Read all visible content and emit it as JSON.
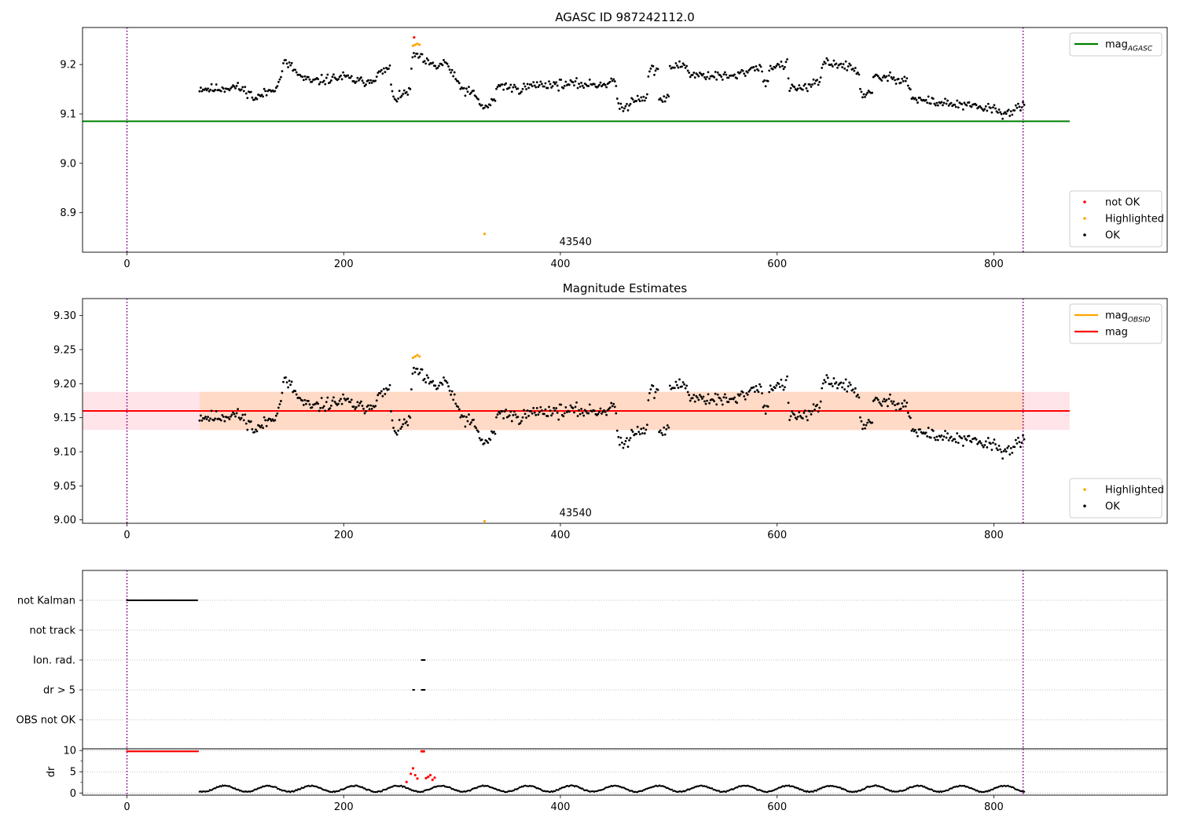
{
  "figure": {
    "title": "AGASC ID 987242112.0"
  },
  "chart_data": [
    {
      "type": "scatter",
      "title": "",
      "xlabel": "",
      "ylabel": "",
      "xlim": [
        -41,
        960
      ],
      "ylim": [
        8.82,
        9.275
      ],
      "x_ticks": [
        "0",
        "200",
        "400",
        "600",
        "800"
      ],
      "y_ticks": [
        "8.9",
        "9.0",
        "9.1",
        "9.2"
      ],
      "vlines": [
        0,
        827
      ],
      "hlines": [
        {
          "name": "mag_AGASC",
          "y": 9.085,
          "x_range": [
            -41,
            870
          ],
          "color": "#008000"
        }
      ],
      "obsid_label": {
        "text": "43540",
        "x": 414
      },
      "legend_lines": [
        {
          "name": "mag",
          "sub": "AGASC",
          "color": "#008000"
        }
      ],
      "legend_points": [
        {
          "name": "not OK",
          "color": "#ff0000"
        },
        {
          "name": "Highlighted",
          "color": "#ffa500"
        },
        {
          "name": "OK",
          "color": "#000000"
        }
      ],
      "series": [
        {
          "name": "OK",
          "color": "#000000",
          "seed": 11,
          "trend": [
            [
              67,
              9.152
            ],
            [
              80,
              9.15
            ],
            [
              100,
              9.155
            ],
            [
              112,
              9.145
            ],
            [
              118,
              9.13
            ],
            [
              130,
              9.145
            ],
            [
              140,
              9.16
            ],
            [
              145,
              9.205
            ],
            [
              152,
              9.195
            ],
            [
              160,
              9.175
            ],
            [
              170,
              9.165
            ],
            [
              200,
              9.175
            ],
            [
              215,
              9.165
            ],
            [
              225,
              9.168
            ],
            [
              232,
              9.18
            ],
            [
              240,
              9.19
            ],
            [
              243,
              9.195
            ],
            [
              244,
              9.14
            ],
            [
              250,
              9.13
            ],
            [
              258,
              9.145
            ],
            [
              262,
              9.15
            ],
            [
              263,
              9.215
            ],
            [
              268,
              9.22
            ],
            [
              275,
              9.205
            ],
            [
              285,
              9.195
            ],
            [
              295,
              9.205
            ],
            [
              300,
              9.18
            ],
            [
              310,
              9.15
            ],
            [
              320,
              9.14
            ],
            [
              330,
              9.11
            ],
            [
              340,
              9.13
            ],
            [
              342,
              9.16
            ],
            [
              360,
              9.15
            ],
            [
              380,
              9.16
            ],
            [
              440,
              9.16
            ],
            [
              451,
              9.17
            ],
            [
              452,
              9.12
            ],
            [
              460,
              9.11
            ],
            [
              466,
              9.13
            ],
            [
              480,
              9.135
            ],
            [
              482,
              9.19
            ],
            [
              490,
              9.19
            ],
            [
              491,
              9.13
            ],
            [
              500,
              9.13
            ],
            [
              501,
              9.195
            ],
            [
              515,
              9.2
            ],
            [
              520,
              9.18
            ],
            [
              560,
              9.175
            ],
            [
              580,
              9.195
            ],
            [
              585,
              9.195
            ],
            [
              590,
              9.15
            ],
            [
              593,
              9.195
            ],
            [
              610,
              9.2
            ],
            [
              611,
              9.15
            ],
            [
              630,
              9.155
            ],
            [
              640,
              9.165
            ],
            [
              642,
              9.205
            ],
            [
              660,
              9.2
            ],
            [
              670,
              9.19
            ],
            [
              675,
              9.185
            ],
            [
              678,
              9.14
            ],
            [
              688,
              9.14
            ],
            [
              689,
              9.175
            ],
            [
              720,
              9.17
            ],
            [
              725,
              9.13
            ],
            [
              760,
              9.12
            ],
            [
              800,
              9.11
            ],
            [
              810,
              9.1
            ],
            [
              827,
              9.115
            ]
          ],
          "noise": 0.007,
          "x_range": [
            67,
            828
          ],
          "count": 690
        },
        {
          "name": "Highlighted",
          "color": "#ffa500",
          "points": [
            [
              264,
              9.238
            ],
            [
              266,
              9.24
            ],
            [
              268,
              9.242
            ],
            [
              270,
              9.24
            ],
            [
              330,
              8.857
            ]
          ]
        },
        {
          "name": "not OK",
          "color": "#ff0000",
          "points": [
            [
              265,
              9.255
            ]
          ]
        }
      ]
    },
    {
      "type": "scatter",
      "title": "Magnitude Estimates",
      "xlabel": "",
      "ylabel": "",
      "xlim": [
        -41,
        960
      ],
      "ylim": [
        8.995,
        9.325
      ],
      "x_ticks": [
        "0",
        "200",
        "400",
        "600",
        "800"
      ],
      "y_ticks": [
        "9.00",
        "9.05",
        "9.10",
        "9.15",
        "9.20",
        "9.25",
        "9.30"
      ],
      "vlines": [
        0,
        827
      ],
      "hlines": [
        {
          "name": "mag",
          "y": 9.16,
          "x_range": [
            -41,
            870
          ],
          "color": "#ff0000"
        }
      ],
      "bands": [
        {
          "y_range": [
            9.132,
            9.188
          ],
          "x_range": [
            -41,
            870
          ],
          "color": "#ffe4ea"
        },
        {
          "y_range": [
            9.132,
            9.188
          ],
          "x_range": [
            67,
            828
          ],
          "color": "#ffdac6"
        }
      ],
      "obsid_label": {
        "text": "43540",
        "x": 414
      },
      "legend_lines": [
        {
          "name": "mag",
          "sub": "OBSID",
          "color": "#ffa500"
        },
        {
          "name": "mag",
          "sub": "",
          "color": "#ff0000"
        }
      ],
      "legend_points": [
        {
          "name": "Highlighted",
          "color": "#ffa500"
        },
        {
          "name": "OK",
          "color": "#000000"
        }
      ],
      "series": [
        {
          "name": "OK",
          "color": "#000000",
          "seed": 11,
          "trend": [
            [
              67,
              9.152
            ],
            [
              80,
              9.15
            ],
            [
              100,
              9.155
            ],
            [
              112,
              9.145
            ],
            [
              118,
              9.13
            ],
            [
              130,
              9.145
            ],
            [
              140,
              9.16
            ],
            [
              145,
              9.205
            ],
            [
              152,
              9.195
            ],
            [
              160,
              9.175
            ],
            [
              170,
              9.165
            ],
            [
              200,
              9.175
            ],
            [
              215,
              9.165
            ],
            [
              225,
              9.168
            ],
            [
              232,
              9.18
            ],
            [
              240,
              9.19
            ],
            [
              243,
              9.195
            ],
            [
              244,
              9.14
            ],
            [
              250,
              9.13
            ],
            [
              258,
              9.145
            ],
            [
              262,
              9.15
            ],
            [
              263,
              9.215
            ],
            [
              268,
              9.22
            ],
            [
              275,
              9.205
            ],
            [
              285,
              9.195
            ],
            [
              295,
              9.205
            ],
            [
              300,
              9.18
            ],
            [
              310,
              9.15
            ],
            [
              320,
              9.14
            ],
            [
              330,
              9.11
            ],
            [
              340,
              9.13
            ],
            [
              342,
              9.16
            ],
            [
              360,
              9.15
            ],
            [
              380,
              9.16
            ],
            [
              440,
              9.16
            ],
            [
              451,
              9.17
            ],
            [
              452,
              9.12
            ],
            [
              460,
              9.11
            ],
            [
              466,
              9.13
            ],
            [
              480,
              9.135
            ],
            [
              482,
              9.19
            ],
            [
              490,
              9.19
            ],
            [
              491,
              9.13
            ],
            [
              500,
              9.13
            ],
            [
              501,
              9.195
            ],
            [
              515,
              9.2
            ],
            [
              520,
              9.18
            ],
            [
              560,
              9.175
            ],
            [
              580,
              9.195
            ],
            [
              585,
              9.195
            ],
            [
              590,
              9.15
            ],
            [
              593,
              9.195
            ],
            [
              610,
              9.2
            ],
            [
              611,
              9.15
            ],
            [
              630,
              9.155
            ],
            [
              640,
              9.165
            ],
            [
              642,
              9.205
            ],
            [
              660,
              9.2
            ],
            [
              670,
              9.19
            ],
            [
              675,
              9.185
            ],
            [
              678,
              9.14
            ],
            [
              688,
              9.14
            ],
            [
              689,
              9.175
            ],
            [
              720,
              9.17
            ],
            [
              725,
              9.13
            ],
            [
              760,
              9.12
            ],
            [
              800,
              9.11
            ],
            [
              810,
              9.1
            ],
            [
              827,
              9.115
            ]
          ],
          "noise": 0.007,
          "x_range": [
            67,
            828
          ],
          "count": 690
        },
        {
          "name": "Highlighted",
          "color": "#ffa500",
          "points": [
            [
              264,
              9.238
            ],
            [
              266,
              9.24
            ],
            [
              268,
              9.242
            ],
            [
              270,
              9.24
            ],
            [
              330,
              8.998
            ]
          ]
        }
      ]
    },
    {
      "type": "scatter",
      "title": "",
      "xlabel": "",
      "ylabel": "",
      "xlim": [
        -41,
        960
      ],
      "categories": [
        "not Kalman",
        "not track",
        "Ion. rad.",
        "dr > 5",
        "OBS not OK"
      ],
      "vlines": [
        0,
        827
      ],
      "flags": [
        {
          "category": "not Kalman",
          "x_range": [
            0,
            66
          ],
          "step": 1.2
        },
        {
          "category": "Ion. rad.",
          "x_range": [
            272,
            275
          ],
          "step": 0.7
        },
        {
          "category": "dr > 5",
          "x_range": [
            264,
            265
          ],
          "step": 1
        },
        {
          "category": "dr > 5",
          "x_range": [
            272,
            275
          ],
          "step": 0.7
        }
      ]
    },
    {
      "type": "scatter",
      "title": "",
      "xlabel": "",
      "ylabel": "dr",
      "xlim": [
        -41,
        960
      ],
      "ylim": [
        -0.5,
        10.4
      ],
      "x_ticks": [
        "0",
        "200",
        "400",
        "600",
        "800"
      ],
      "y_ticks": [
        "0",
        "5",
        "10"
      ],
      "vlines": [
        0,
        827
      ],
      "series": [
        {
          "name": "dr",
          "color": "#000000",
          "seed": 5,
          "wave": {
            "base": 1.0,
            "amp": 0.7,
            "period": 40
          },
          "x_range": [
            67,
            828
          ],
          "count": 720
        },
        {
          "name": "dr > 5",
          "color": "#ff0000",
          "line": {
            "y": 9.8,
            "x_range": [
              0,
              66
            ],
            "step": 0.8
          }
        },
        {
          "name": "dr > 5",
          "color": "#ff0000",
          "points": [
            [
              258,
              2.6
            ],
            [
              262,
              4.5
            ],
            [
              264,
              5.8
            ],
            [
              266,
              4.2
            ],
            [
              268,
              3.4
            ],
            [
              272,
              9.8
            ],
            [
              274,
              9.8
            ],
            [
              276,
              3.5
            ],
            [
              278,
              3.8
            ],
            [
              280,
              4.2
            ],
            [
              282,
              3.1
            ],
            [
              284,
              3.6
            ]
          ]
        }
      ]
    }
  ]
}
